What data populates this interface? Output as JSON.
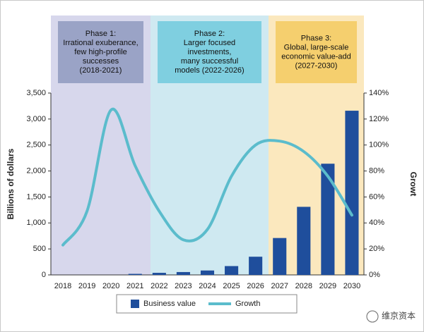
{
  "chart_data": {
    "type": "bar-line",
    "y_label": "Billions of dollars",
    "y2_label": "Growt",
    "annotations": [
      {
        "lines": [
          "Phase 1:",
          "Irrational exuberance,",
          "few high-profile",
          "successes",
          "(2018-2021)"
        ]
      },
      {
        "lines": [
          "Phase 2:",
          "Larger focused",
          "investments,",
          "many successful",
          "models (2022-2026)"
        ]
      },
      {
        "lines": [
          "Phase 3:",
          "Global, large-scale",
          "economic value-add",
          "(2027-2030)"
        ]
      }
    ],
    "categories": [
      "2018",
      "2019",
      "2020",
      "2021",
      "2022",
      "2023",
      "2024",
      "2025",
      "2026",
      "2027",
      "2028",
      "2029",
      "2030"
    ],
    "series": [
      {
        "name": "Business value",
        "type": "bar",
        "color": "#1f4e9c",
        "values": [
          null,
          null,
          null,
          20,
          40,
          55,
          85,
          170,
          350,
          710,
          1310,
          2140,
          3160
        ]
      },
      {
        "name": "Growth",
        "type": "line",
        "axis": "y2",
        "color": "#5bbccc",
        "values": [
          23,
          49,
          127,
          84,
          49,
          27,
          35,
          76,
          100,
          103,
          95,
          76,
          46
        ]
      }
    ],
    "ylim": [
      0,
      3500
    ],
    "yticks": [
      0,
      500,
      {
        "value": 1000,
        "label": "1,000"
      },
      {
        "value": 1500,
        "label": "1,500"
      },
      {
        "value": 2000,
        "label": "2,000"
      },
      {
        "value": 2500,
        "label": "2,500"
      },
      {
        "value": 3000,
        "label": "3,000"
      },
      {
        "value": 3500,
        "label": "3,500"
      }
    ],
    "y2lim": [
      0,
      140
    ],
    "y2ticks": [
      {
        "value": 0,
        "label": "0%"
      },
      {
        "value": 20,
        "label": "20%"
      },
      {
        "value": 40,
        "label": "40%"
      },
      {
        "value": 60,
        "label": "60%"
      },
      {
        "value": 80,
        "label": "80%"
      },
      {
        "value": 100,
        "label": "100%"
      },
      {
        "value": 120,
        "label": "120%"
      },
      {
        "value": 140,
        "label": "140%"
      }
    ],
    "watermark": "维京资本"
  }
}
